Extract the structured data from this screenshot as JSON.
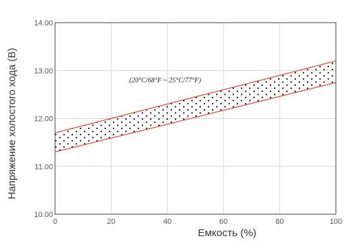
{
  "chart_data": {
    "type": "area",
    "title": "",
    "xlabel": "Емкость (%)",
    "ylabel": "Напряжение холостого хода (В)",
    "xlim": [
      0,
      100
    ],
    "ylim": [
      10.0,
      14.0
    ],
    "x_ticks": [
      "0",
      "20",
      "40",
      "60",
      "80",
      "100"
    ],
    "y_ticks": [
      "10.00",
      "11.00",
      "12.00",
      "13.00",
      "14.00"
    ],
    "grid": true,
    "legend": "none",
    "series": [
      {
        "x": [
          0,
          100
        ],
        "values": [
          11.7,
          13.2
        ]
      },
      {
        "x": [
          0,
          100
        ],
        "values": [
          11.3,
          12.75
        ]
      }
    ],
    "fill": "dotted band between the two lines",
    "annotation": "(20°C/68°F ~ 25°C/77°F)",
    "colors": {
      "band_lines": "#e04040",
      "dots": "#111111",
      "grid": "#d8d8d8",
      "frame": "#444444"
    }
  }
}
